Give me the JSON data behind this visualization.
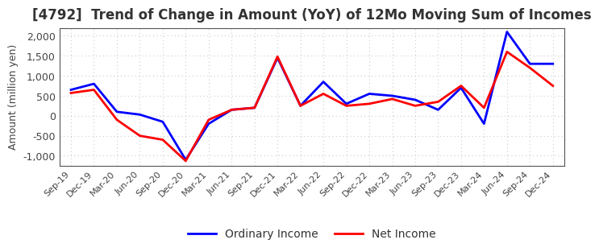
{
  "title": "[4792]  Trend of Change in Amount (YoY) of 12Mo Moving Sum of Incomes",
  "ylabel": "Amount (million yen)",
  "x_labels": [
    "Sep-19",
    "Dec-19",
    "Mar-20",
    "Jun-20",
    "Sep-20",
    "Dec-20",
    "Mar-21",
    "Jun-21",
    "Sep-21",
    "Dec-21",
    "Mar-22",
    "Jun-22",
    "Sep-22",
    "Dec-22",
    "Mar-23",
    "Jun-23",
    "Sep-23",
    "Dec-23",
    "Mar-24",
    "Jun-24",
    "Sep-24",
    "Dec-24"
  ],
  "ordinary_income": [
    650,
    800,
    100,
    30,
    -150,
    -1100,
    -200,
    150,
    200,
    1450,
    250,
    850,
    300,
    550,
    500,
    400,
    150,
    700,
    -200,
    2100,
    1300,
    1300
  ],
  "net_income": [
    570,
    650,
    -100,
    -500,
    -600,
    -1130,
    -100,
    150,
    200,
    1480,
    250,
    550,
    250,
    300,
    420,
    250,
    350,
    750,
    200,
    1600,
    1200,
    750
  ],
  "ordinary_income_color": "#0000FF",
  "net_income_color": "#FF0000",
  "ylim": [
    -1250,
    2200
  ],
  "yticks": [
    -1000,
    -500,
    0,
    500,
    1000,
    1500,
    2000
  ],
  "background_color": "#ffffff",
  "grid_color": "#cccccc",
  "title_fontsize": 12,
  "legend_labels": [
    "Ordinary Income",
    "Net Income"
  ]
}
